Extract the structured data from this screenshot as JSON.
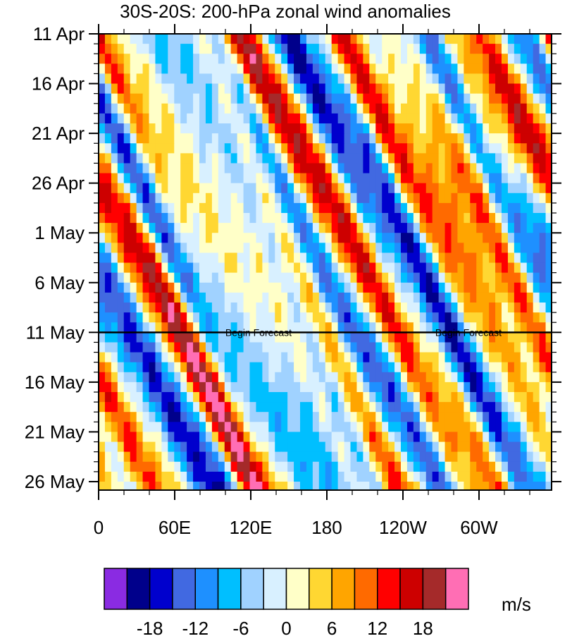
{
  "chart_data": {
    "type": "heatmap",
    "title": "30S-20S: 200-hPa zonal wind anomalies",
    "x_ticks": [
      "0",
      "60E",
      "120E",
      "180",
      "120W",
      "60W"
    ],
    "x_tick_deg": [
      0,
      60,
      120,
      180,
      240,
      300
    ],
    "xlim": [
      0,
      357.5
    ],
    "y_ticks": [
      "11 Apr",
      "16 Apr",
      "21 Apr",
      "26 Apr",
      "1 May",
      "6 May",
      "11 May",
      "16 May",
      "21 May",
      "26 May"
    ],
    "y_tick_day": [
      0,
      5,
      10,
      15,
      20,
      25,
      30,
      35,
      40,
      45
    ],
    "ylim_day": [
      0,
      46
    ],
    "forecast_start_day": 30,
    "annotation": "Begin Forecast",
    "colorbar": {
      "unit": "m/s",
      "colors": [
        "#8a2be2",
        "#00008b",
        "#0000cd",
        "#4169e1",
        "#1e90ff",
        "#00bfff",
        "#a0d2ff",
        "#d8f0ff",
        "#ffffc8",
        "#ffd732",
        "#ffa500",
        "#ff6a00",
        "#ff0000",
        "#cd0000",
        "#a52a2a",
        "#ff6eb4"
      ],
      "levels": [
        -21,
        -18,
        -15,
        -12,
        -9,
        -6,
        -3,
        0,
        3,
        6,
        9,
        12,
        15,
        18,
        21
      ],
      "labels": [
        "-18",
        "-12",
        "-6",
        "0",
        "6",
        "12",
        "18"
      ],
      "label_levels": [
        -18,
        -12,
        -6,
        0,
        6,
        12,
        18
      ]
    }
  }
}
